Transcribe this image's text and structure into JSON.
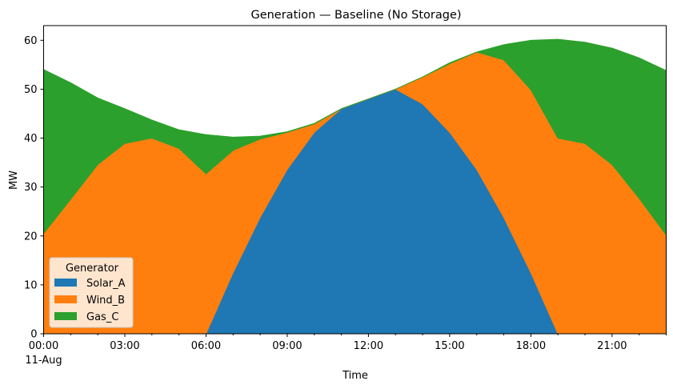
{
  "chart_data": {
    "type": "area",
    "stacked": true,
    "title": "Generation — Baseline (No Storage)",
    "xlabel": "Time",
    "ylabel": "MW",
    "ylim": [
      0,
      63
    ],
    "xlim": [
      0,
      23
    ],
    "x": [
      0,
      1,
      2,
      3,
      4,
      5,
      6,
      7,
      8,
      9,
      10,
      11,
      12,
      13,
      14,
      15,
      16,
      17,
      18,
      19,
      20,
      21,
      22,
      23
    ],
    "x_ticks": [
      {
        "x": 0,
        "label": "00:00",
        "sublabel": "11-Aug"
      },
      {
        "x": 3,
        "label": "03:00"
      },
      {
        "x": 6,
        "label": "06:00"
      },
      {
        "x": 9,
        "label": "09:00"
      },
      {
        "x": 12,
        "label": "12:00"
      },
      {
        "x": 15,
        "label": "15:00"
      },
      {
        "x": 18,
        "label": "18:00"
      },
      {
        "x": 21,
        "label": "21:00"
      }
    ],
    "y_ticks": [
      0,
      10,
      20,
      30,
      40,
      50,
      60
    ],
    "legend": {
      "title": "Generator",
      "position": "lower-left"
    },
    "series": [
      {
        "name": "Solar_A",
        "color": "#1f77b4",
        "values": [
          0,
          0,
          0,
          0,
          0,
          0,
          0,
          12.5,
          23.8,
          33.6,
          41.2,
          46.0,
          48.0,
          50.0,
          47.0,
          41.2,
          33.6,
          23.8,
          12.5,
          0,
          0,
          0,
          0,
          0
        ]
      },
      {
        "name": "Wind_B",
        "color": "#ff7f0e",
        "values": [
          20.5,
          27.5,
          34.6,
          38.9,
          40.0,
          37.9,
          32.7,
          25.0,
          16.0,
          7.6,
          1.7,
          0,
          0,
          0,
          5.5,
          14.0,
          24.0,
          32.2,
          37.4,
          40.0,
          38.9,
          34.6,
          27.7,
          20.2
        ]
      },
      {
        "name": "Gas_C",
        "color": "#2ca02c",
        "values": [
          33.5,
          23.8,
          13.6,
          7.1,
          3.7,
          3.8,
          8.0,
          2.7,
          0.6,
          0.1,
          0.1,
          0,
          0,
          0,
          0,
          0.2,
          0,
          3.1,
          10.1,
          20.2,
          20.7,
          23.8,
          28.7,
          33.6
        ]
      }
    ]
  }
}
